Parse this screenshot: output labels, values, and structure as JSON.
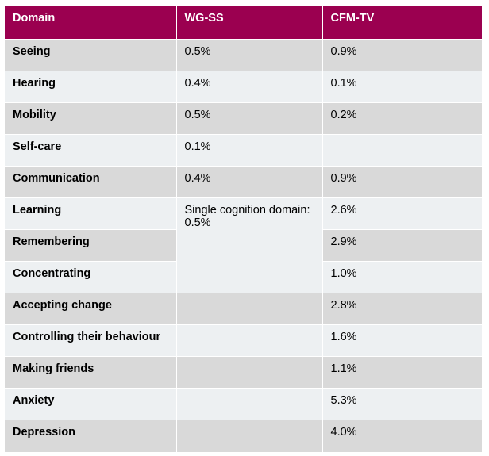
{
  "table": {
    "headers": [
      "Domain",
      "WG-SS",
      "CFM-TV"
    ],
    "rows": [
      {
        "domain": "Seeing",
        "wgss": "0.5%",
        "cfmtv": "0.9%"
      },
      {
        "domain": "Hearing",
        "wgss": "0.4%",
        "cfmtv": "0.1%"
      },
      {
        "domain": "Mobility",
        "wgss": "0.5%",
        "cfmtv": "0.2%"
      },
      {
        "domain": "Self-care",
        "wgss": "0.1%",
        "cfmtv": ""
      },
      {
        "domain": "Communication",
        "wgss": "0.4%",
        "cfmtv": "0.9%"
      },
      {
        "domain": "Learning",
        "wgss": "",
        "cfmtv": "2.6%"
      },
      {
        "domain": "Remembering",
        "wgss": "",
        "cfmtv": "2.9%"
      },
      {
        "domain": "Concentrating",
        "wgss": "",
        "cfmtv": "1.0%"
      },
      {
        "domain": "Accepting change",
        "wgss": "",
        "cfmtv": "2.8%"
      },
      {
        "domain": "Controlling their behaviour",
        "wgss": "",
        "cfmtv": "1.6%"
      },
      {
        "domain": "Making friends",
        "wgss": "",
        "cfmtv": "1.1%"
      },
      {
        "domain": "Anxiety",
        "wgss": "",
        "cfmtv": "5.3%"
      },
      {
        "domain": "Depression",
        "wgss": "",
        "cfmtv": "4.0%"
      }
    ],
    "merged_cognition": {
      "line1": "Single cognition domain:",
      "line2": "0.5%"
    }
  },
  "colors": {
    "header_bg": "#9b0050",
    "row_dark": "#d9d9d9",
    "row_light": "#edf0f2"
  }
}
